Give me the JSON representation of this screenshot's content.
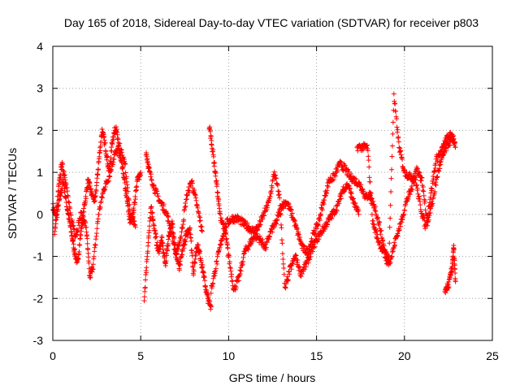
{
  "chart_data": {
    "type": "scatter",
    "title": "Day 165 of 2018, Sidereal Day-to-day VTEC variation (SDTVAR) for receiver p803",
    "xlabel": "GPS time / hours",
    "ylabel": "SDTVAR / TECUs",
    "xlim": [
      0,
      25
    ],
    "ylim": [
      -3,
      4
    ],
    "xticks": [
      "0",
      "5",
      "10",
      "15",
      "20",
      "25"
    ],
    "yticks": [
      "4",
      "3",
      "2",
      "1",
      "0",
      "-1",
      "-2",
      "-3"
    ],
    "grid": true,
    "marker": "+",
    "color": "#ff0000",
    "series": [
      {
        "name": "SDTVAR",
        "segments": [
          {
            "x": [
              0.0,
              0.2,
              0.4,
              0.6,
              0.8,
              1.0,
              1.2,
              1.4,
              1.6,
              1.8,
              2.0,
              2.2,
              2.4,
              2.6,
              2.8,
              3.0,
              3.2,
              3.4,
              3.6,
              3.8,
              4.0,
              4.2,
              4.4,
              4.6,
              4.8,
              5.0
            ],
            "y": [
              0.2,
              -0.1,
              0.4,
              0.8,
              0.2,
              -0.3,
              -0.8,
              -1.2,
              -0.4,
              0.2,
              0.8,
              0.5,
              0.3,
              1.2,
              2.0,
              1.6,
              1.0,
              1.8,
              2.1,
              1.4,
              1.0,
              0.4,
              -0.2,
              0.1,
              0.8,
              1.0
            ]
          },
          {
            "x": [
              0.1,
              0.3,
              0.5,
              0.7,
              1.0,
              1.3,
              1.6,
              1.9,
              2.1,
              2.3,
              2.6,
              2.9,
              3.2,
              3.5,
              3.8,
              4.1,
              4.4,
              4.7
            ],
            "y": [
              -0.5,
              0.5,
              1.2,
              0.9,
              0.0,
              -0.5,
              0.0,
              -0.3,
              -1.5,
              -1.2,
              0.0,
              0.6,
              0.9,
              1.4,
              1.6,
              1.2,
              0.0,
              -0.3
            ]
          },
          {
            "x": [
              5.2,
              5.4,
              5.6,
              5.8,
              6.0,
              6.2,
              6.4,
              6.6,
              6.8,
              7.0,
              7.2,
              7.4,
              7.6,
              7.8,
              8.0,
              8.2,
              8.4,
              8.6,
              8.8,
              9.0
            ],
            "y": [
              -2.0,
              -0.8,
              0.2,
              -0.4,
              -0.9,
              -0.6,
              -1.2,
              -0.5,
              -0.2,
              -0.9,
              -1.3,
              -0.8,
              -0.5,
              -0.3,
              -1.4,
              -0.7,
              -1.0,
              -1.5,
              -2.0,
              -2.2
            ]
          },
          {
            "x": [
              5.3,
              5.5,
              5.8,
              6.1,
              6.4,
              6.7,
              7.0,
              7.3,
              7.6,
              7.9,
              8.2,
              8.5
            ],
            "y": [
              1.5,
              1.0,
              0.6,
              0.3,
              0.1,
              -0.3,
              -1.0,
              -0.5,
              0.4,
              0.8,
              0.2,
              -0.4
            ]
          },
          {
            "x": [
              8.9,
              9.1,
              9.3,
              9.5,
              9.8,
              10.0,
              10.3,
              10.6,
              10.9,
              11.2,
              11.5,
              11.8,
              12.1,
              12.4,
              12.7,
              13.0,
              13.3,
              13.6,
              13.9,
              14.2,
              14.5,
              14.8,
              15.1,
              15.4,
              15.7,
              16.0,
              16.3,
              16.6,
              16.9,
              17.2,
              17.5,
              17.8,
              18.1
            ],
            "y": [
              2.1,
              1.5,
              0.8,
              0.0,
              -0.4,
              -1.0,
              -1.8,
              -1.5,
              -0.9,
              -0.7,
              -0.5,
              -0.6,
              -0.8,
              -0.4,
              -0.2,
              0.2,
              0.3,
              0.0,
              -0.4,
              -0.8,
              -0.9,
              -0.5,
              -0.2,
              0.3,
              0.8,
              0.9,
              1.2,
              1.1,
              0.9,
              0.8,
              0.7,
              0.4,
              0.5
            ]
          },
          {
            "x": [
              9.0,
              9.3,
              9.6,
              9.9,
              10.2,
              10.5,
              10.8,
              11.1,
              11.4,
              11.7,
              12.0,
              12.3,
              12.6,
              12.9,
              13.2,
              13.5,
              13.8,
              14.1,
              14.4,
              14.7,
              15.0,
              15.3,
              15.6,
              15.9,
              16.2,
              16.5,
              16.8,
              17.1,
              17.4
            ],
            "y": [
              -1.8,
              -1.2,
              -0.6,
              -0.2,
              -0.1,
              -0.1,
              -0.2,
              -0.3,
              -0.4,
              -0.3,
              0.0,
              0.3,
              1.0,
              0.4,
              -1.8,
              -1.3,
              -1.0,
              -1.4,
              -1.2,
              -0.9,
              -0.6,
              -0.4,
              -0.2,
              0.0,
              0.2,
              0.6,
              0.7,
              0.3,
              0.0
            ]
          },
          {
            "x": [
              17.3,
              17.6,
              17.9,
              18.2,
              18.5,
              18.8,
              19.1,
              19.4,
              19.7,
              20.0,
              20.3,
              20.6,
              20.9,
              21.2,
              21.5,
              21.8,
              22.1,
              22.4,
              22.7,
              22.9
            ],
            "y": [
              1.6,
              1.6,
              1.6,
              -0.2,
              -0.6,
              -0.9,
              -1.2,
              2.8,
              1.6,
              1.0,
              0.9,
              0.9,
              0.2,
              -0.3,
              0.5,
              1.3,
              1.5,
              1.8,
              1.9,
              1.6
            ]
          },
          {
            "x": [
              18.0,
              18.3,
              18.6,
              18.9,
              19.2,
              19.5,
              19.8,
              20.1,
              20.4,
              20.7,
              21.0,
              21.3,
              21.6,
              21.9,
              22.2,
              22.5,
              22.8
            ],
            "y": [
              0.4,
              0.2,
              -0.3,
              -0.9,
              -1.1,
              -0.6,
              -0.2,
              0.3,
              0.6,
              1.1,
              0.8,
              -0.2,
              0.3,
              1.0,
              1.4,
              1.7,
              1.8
            ]
          },
          {
            "x": [
              22.3,
              22.5,
              22.7,
              22.8,
              22.9
            ],
            "y": [
              -1.8,
              -1.7,
              -1.3,
              -0.8,
              -1.6
            ]
          }
        ]
      }
    ]
  }
}
